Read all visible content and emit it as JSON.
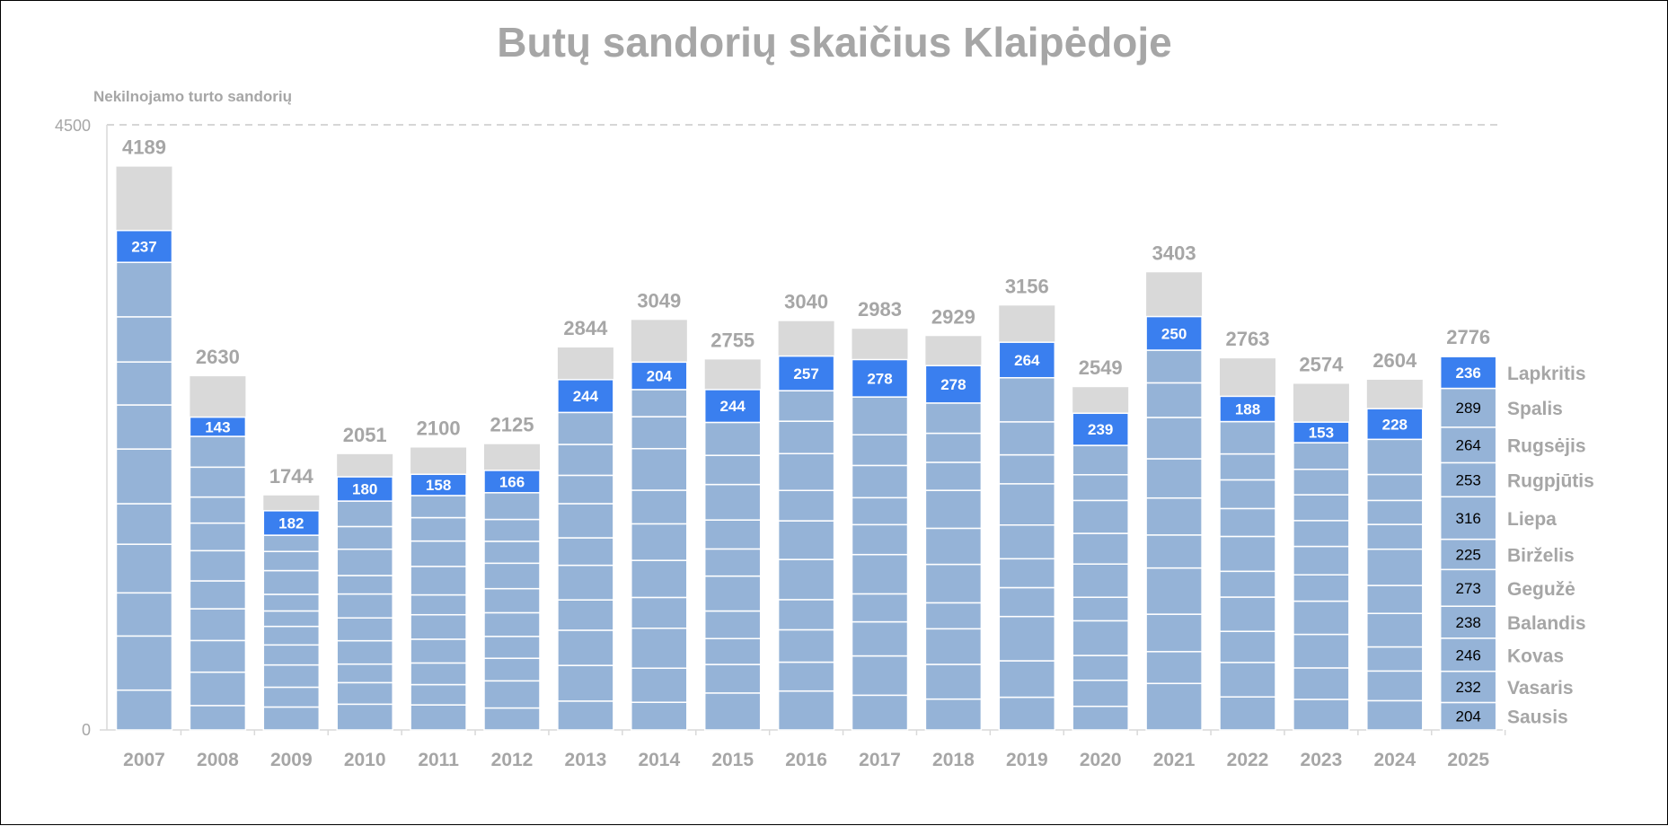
{
  "chart_data": {
    "type": "bar",
    "stacked": true,
    "title": "Butų sandorių skaičius Klaipėdoje",
    "ylabel": "Nekilnojamo turto sandorių",
    "ylim": [
      0,
      4500
    ],
    "yticks": [
      "0",
      "4500"
    ],
    "categories": [
      "2007",
      "2008",
      "2009",
      "2010",
      "2011",
      "2012",
      "2013",
      "2014",
      "2015",
      "2016",
      "2017",
      "2018",
      "2019",
      "2020",
      "2021",
      "2022",
      "2023",
      "2024",
      "2025"
    ],
    "totals": [
      4189,
      2630,
      1744,
      2051,
      2100,
      2125,
      2844,
      3049,
      2755,
      3040,
      2983,
      2929,
      3156,
      2549,
      3403,
      2763,
      2574,
      2604,
      2776
    ],
    "current_month_values": [
      237,
      143,
      182,
      180,
      158,
      166,
      244,
      204,
      244,
      257,
      278,
      278,
      264,
      239,
      250,
      188,
      153,
      228,
      236
    ],
    "months": [
      "Sausis",
      "Vasaris",
      "Kovas",
      "Balandis",
      "Gegužė",
      "Birželis",
      "Liepa",
      "Rugpjūtis",
      "Rugsėjis",
      "Spalis",
      "Lapkritis"
    ],
    "monthly_2025": [
      204,
      232,
      246,
      238,
      273,
      225,
      316,
      253,
      264,
      289,
      236
    ],
    "colors": {
      "past_months": "#95b3d7",
      "current_month": "#3a7fef",
      "remainder": "#d9d9d9",
      "separator": "#ffffff",
      "text": "#a6a6a6"
    }
  }
}
